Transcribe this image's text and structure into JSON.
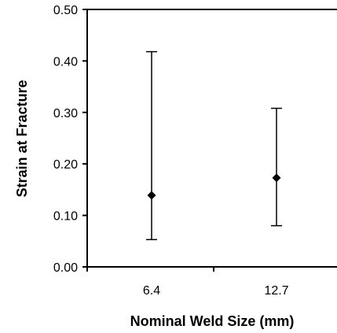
{
  "chart_data": {
    "type": "scatter",
    "xlabel": "Nominal Weld Size (mm)",
    "ylabel": "Strain at Fracture",
    "categories": [
      "6.4",
      "12.7"
    ],
    "ylim": [
      0.0,
      0.5
    ],
    "yticks": [
      "0.00",
      "0.10",
      "0.20",
      "0.30",
      "0.40",
      "0.50"
    ],
    "grid": false,
    "series": [
      {
        "marker": "diamond",
        "color": "#000000",
        "points": [
          {
            "x": "6.4",
            "y": 0.139,
            "low": 0.053,
            "high": 0.418
          },
          {
            "x": "12.7",
            "y": 0.173,
            "low": 0.08,
            "high": 0.308
          }
        ]
      }
    ]
  }
}
